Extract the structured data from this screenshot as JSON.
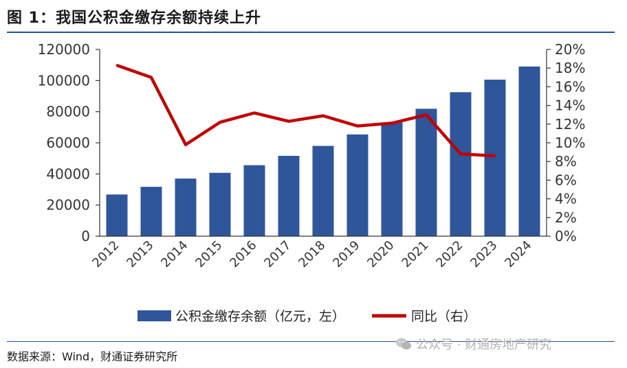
{
  "header": {
    "title": "图 1：我国公积金缴存余额持续上升"
  },
  "footer": {
    "source": "数据来源：Wind，财通证券研究所",
    "watermark": "公众号 · 财通房地产研究"
  },
  "colors": {
    "bar": "#2f559b",
    "line": "#c00000",
    "rule": "#1f4e9c"
  },
  "chart_data": {
    "type": "bar",
    "title": "我国公积金缴存余额持续上升",
    "categories": [
      "2012",
      "2013",
      "2014",
      "2015",
      "2016",
      "2017",
      "2018",
      "2019",
      "2020",
      "2021",
      "2022",
      "2023",
      "2024"
    ],
    "series": [
      {
        "name": "公积金缴存余额（亿元，左）",
        "type": "bar",
        "axis": "left",
        "values": [
          26800,
          31700,
          37000,
          40700,
          45600,
          51600,
          58000,
          65400,
          73000,
          81900,
          92500,
          100600,
          109000
        ]
      },
      {
        "name": "同比（右）",
        "type": "line",
        "axis": "right",
        "values": [
          18.3,
          17.0,
          9.8,
          12.2,
          13.2,
          12.3,
          12.9,
          11.8,
          12.1,
          13.0,
          8.8,
          8.6,
          null
        ]
      }
    ],
    "y_left": {
      "min": 0,
      "max": 120000,
      "ticks": [
        "0",
        "20000",
        "40000",
        "60000",
        "80000",
        "100000",
        "120000"
      ]
    },
    "y_right": {
      "min": 0,
      "max": 20,
      "ticks": [
        "0%",
        "2%",
        "4%",
        "6%",
        "8%",
        "10%",
        "12%",
        "14%",
        "16%",
        "18%",
        "20%"
      ]
    },
    "legend": {
      "position": "bottom",
      "entries": [
        "公积金缴存余额（亿元，左）",
        "同比（右）"
      ]
    },
    "grid": false
  }
}
